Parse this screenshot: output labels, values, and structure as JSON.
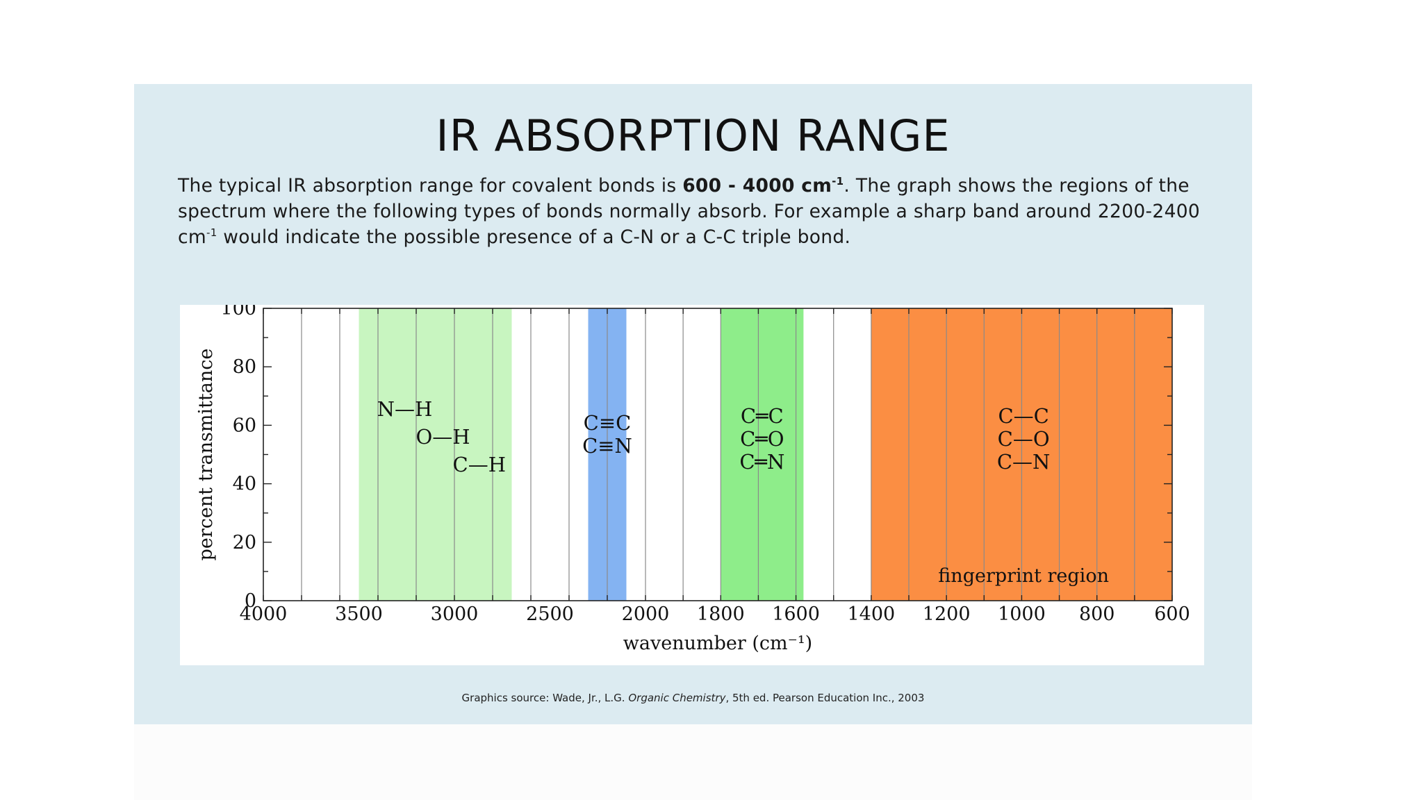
{
  "slide": {
    "title": "IR ABSORPTION RANGE",
    "intro": {
      "part1": "The typical IR absorption range for covalent bonds is ",
      "bold_range": "600 - 4000 cm",
      "bold_sup": "-1",
      "part2": ". The graph shows the regions of the spectrum where the following types of bonds normally absorb. For example a sharp band around 2200-2400 cm",
      "sup2": "-1",
      "part3": " would indicate the possible presence of a C-N or a C-C triple bond."
    },
    "source": {
      "prefix": "Graphics source: Wade, Jr., L.G. ",
      "italic": "Organic Chemistry",
      "suffix": ", 5th ed. Pearson Education Inc., 2003"
    }
  },
  "chart_data": {
    "type": "bar",
    "xlabel": "wavenumber (cm⁻¹)",
    "ylabel": "percent transmittance",
    "xlim": [
      4000,
      600
    ],
    "ylim": [
      0,
      100
    ],
    "x_ticks": [
      4000,
      3500,
      3000,
      2500,
      2000,
      1800,
      1600,
      1400,
      1200,
      1000,
      800,
      600
    ],
    "y_ticks": [
      0,
      20,
      40,
      60,
      80,
      100
    ],
    "regions": [
      {
        "from": 3500,
        "to": 2700,
        "color": "#c8f5c0",
        "labels": [
          "N—H",
          "O—H",
          "C—H"
        ]
      },
      {
        "from": 2300,
        "to": 2100,
        "color": "#84b3f2",
        "labels": [
          "C≡C",
          "C≡N"
        ]
      },
      {
        "from": 1800,
        "to": 1580,
        "color": "#8eed8a",
        "labels": [
          "C═C",
          "C═O",
          "C═N"
        ]
      },
      {
        "from": 1400,
        "to": 600,
        "color": "#fb8e43",
        "labels": [
          "C—C",
          "C—O",
          "C—N"
        ],
        "note": "fingerprint region"
      }
    ]
  }
}
